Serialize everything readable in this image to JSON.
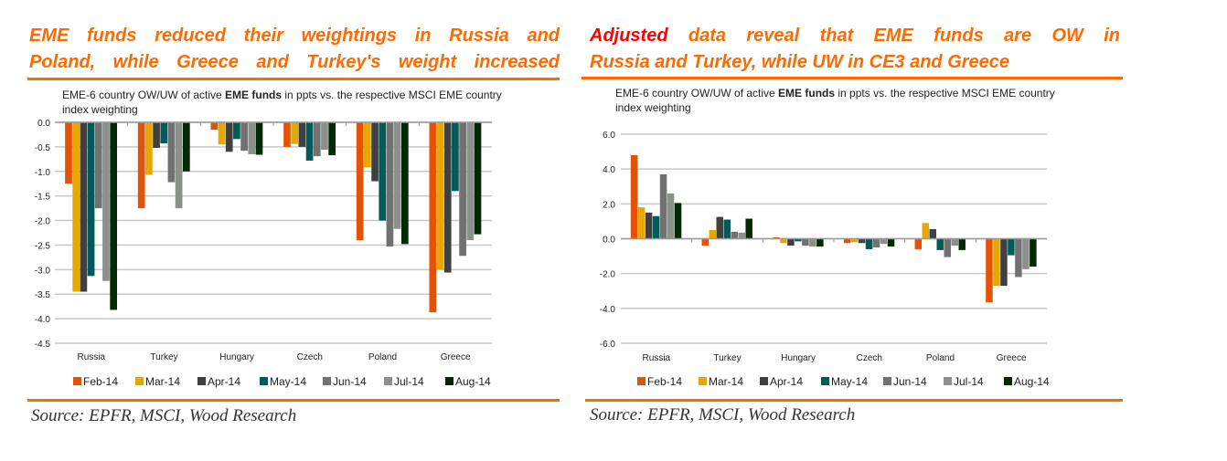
{
  "left_panel": {
    "title_line1": "EME funds reduced their weightings in Russia and",
    "title_line2": "Poland, while Greece and Turkey's weight increased",
    "source": "Source: EPFR, MSCI, Wood Research"
  },
  "right_panel": {
    "title_highlight": "Adjusted",
    "title_line1_rest": " data reveal that EME funds are OW in",
    "title_line2": "Russia and Turkey, while UW in CE3 and Greece",
    "source": "Source: EPFR, MSCI, Wood Research"
  },
  "colors": {
    "accent": "#ff6a00",
    "highlight": "#ff0000"
  },
  "chart_data": [
    {
      "type": "bar",
      "title_line1": "EME-6 country OW/UW of active EME funds in  ppts vs. the respective  MSCI EME country",
      "title_line2": "index weighting",
      "categories": [
        "Russia",
        "Turkey",
        "Hungary",
        "Czech",
        "Poland",
        "Greece"
      ],
      "ylim": [
        -4.5,
        0
      ],
      "yticks": [
        0.0,
        -0.5,
        -1.0,
        -1.5,
        -2.0,
        -2.5,
        -3.0,
        -3.5,
        -4.0,
        -4.5
      ],
      "grid": true,
      "legend": "bottom",
      "series": [
        {
          "name": "Feb-14",
          "color": "#e35205",
          "values": [
            -1.25,
            -1.75,
            -0.15,
            -0.5,
            -2.4,
            -3.87
          ]
        },
        {
          "name": "Mar-14",
          "color": "#e6a800",
          "values": [
            -3.45,
            -1.07,
            -0.45,
            -0.44,
            -0.92,
            -3.0
          ]
        },
        {
          "name": "Apr-14",
          "color": "#404040",
          "values": [
            -3.45,
            -0.52,
            -0.6,
            -0.5,
            -1.2,
            -3.06
          ]
        },
        {
          "name": "May-14",
          "color": "#005a5a",
          "values": [
            -3.13,
            -0.43,
            -0.34,
            -0.78,
            -2.0,
            -1.4
          ]
        },
        {
          "name": "Jun-14",
          "color": "#717171",
          "values": [
            -1.75,
            -1.22,
            -0.58,
            -0.69,
            -2.53,
            -2.72
          ]
        },
        {
          "name": "Jul-14",
          "color": "#8b918a",
          "values": [
            -3.23,
            -1.75,
            -0.65,
            -0.56,
            -2.17,
            -2.4
          ]
        },
        {
          "name": "Aug-14",
          "color": "#022a02",
          "values": [
            -3.82,
            -1.0,
            -0.66,
            -0.67,
            -2.48,
            -2.28
          ]
        }
      ]
    },
    {
      "type": "bar",
      "title_line1": "EME-6 country OW/UW of active EME funds in  ppts vs. the respective  MSCI EME country",
      "title_line2": "index weighting",
      "categories": [
        "Russia",
        "Turkey",
        "Hungary",
        "Czech",
        "Poland",
        "Greece"
      ],
      "ylim": [
        -6,
        6
      ],
      "yticks": [
        6.0,
        4.0,
        2.0,
        0.0,
        -2.0,
        -4.0,
        -6.0
      ],
      "grid": true,
      "legend": "bottom",
      "series": [
        {
          "name": "Feb-14",
          "color": "#e35205",
          "values": [
            4.8,
            -0.4,
            0.08,
            -0.25,
            -0.6,
            -3.65
          ]
        },
        {
          "name": "Mar-14",
          "color": "#e6a800",
          "values": [
            1.8,
            0.5,
            -0.25,
            -0.2,
            0.9,
            -2.7
          ]
        },
        {
          "name": "Apr-14",
          "color": "#404040",
          "values": [
            1.5,
            1.25,
            -0.4,
            -0.25,
            0.55,
            -2.7
          ]
        },
        {
          "name": "May-14",
          "color": "#005a5a",
          "values": [
            1.3,
            1.1,
            -0.15,
            -0.6,
            -0.65,
            -0.95
          ]
        },
        {
          "name": "Jun-14",
          "color": "#717171",
          "values": [
            3.7,
            0.4,
            -0.4,
            -0.5,
            -1.05,
            -2.2
          ]
        },
        {
          "name": "Jul-14",
          "color": "#8b918a",
          "values": [
            2.6,
            0.35,
            -0.45,
            -0.3,
            -0.4,
            -1.75
          ]
        },
        {
          "name": "Aug-14",
          "color": "#022a02",
          "values": [
            2.05,
            1.15,
            -0.45,
            -0.45,
            -0.65,
            -1.6
          ]
        }
      ]
    }
  ]
}
